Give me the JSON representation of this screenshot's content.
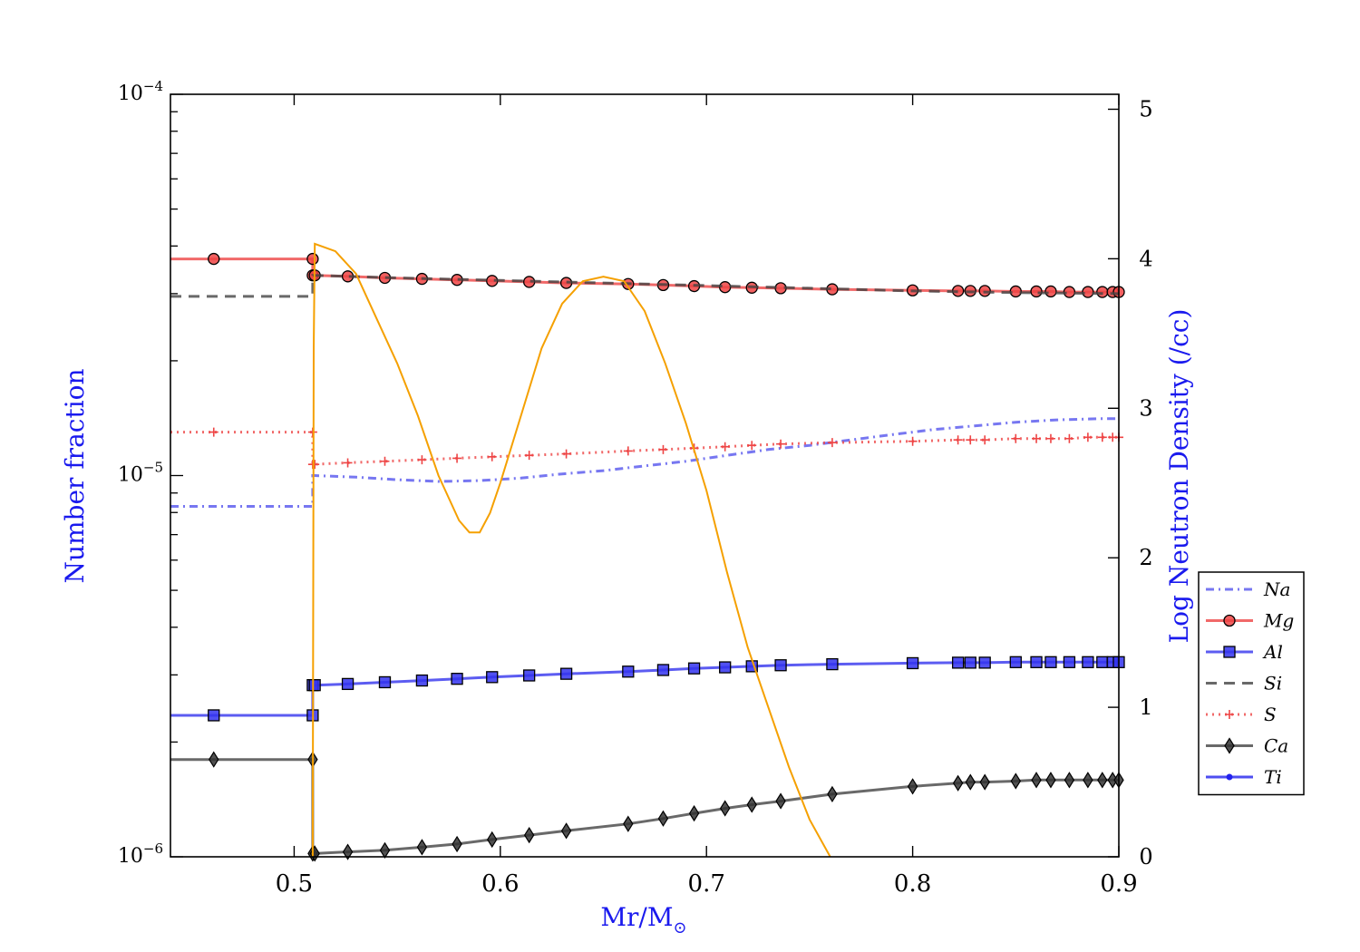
{
  "chart_data": {
    "type": "line",
    "xlabel_main": "Mr/M",
    "xlabel_sub": "⊙",
    "ylabel_left": "Number fraction",
    "ylabel_right": "Log Neutron Density (/cc)",
    "xlim": [
      0.44,
      0.9
    ],
    "ylim_left": [
      1e-06,
      0.0001
    ],
    "ylim_right": [
      0,
      5.1
    ],
    "y_left_scale": "log",
    "x_ticks": [
      0.5,
      0.6,
      0.7,
      0.8,
      0.9
    ],
    "x_tick_labels": [
      "0.5",
      "0.6",
      "0.7",
      "0.8",
      "0.9"
    ],
    "y_left_major_ticks": [
      {
        "value": 1e-06,
        "base": "10",
        "exp": "−6"
      },
      {
        "value": 1e-05,
        "base": "10",
        "exp": "−5"
      },
      {
        "value": 0.0001,
        "base": "10",
        "exp": "−4"
      }
    ],
    "y_right_ticks": [
      0,
      1,
      2,
      3,
      4,
      5
    ],
    "y_right_tick_labels": [
      "0",
      "1",
      "2",
      "3",
      "4",
      "5"
    ],
    "legend_position": "right",
    "series": [
      {
        "name": "Na",
        "color": "#5555ee",
        "style": "dashdot",
        "marker": "none",
        "x": [
          0.44,
          0.509,
          0.509,
          0.51,
          0.53,
          0.55,
          0.57,
          0.59,
          0.61,
          0.63,
          0.65,
          0.67,
          0.69,
          0.71,
          0.73,
          0.75,
          0.77,
          0.79,
          0.81,
          0.83,
          0.85,
          0.87,
          0.89,
          0.9
        ],
        "y": [
          8.3e-06,
          8.3e-06,
          1e-05,
          1e-05,
          9.9e-06,
          9.75e-06,
          9.65e-06,
          9.7e-06,
          9.85e-06,
          1.01e-05,
          1.03e-05,
          1.06e-05,
          1.09e-05,
          1.13e-05,
          1.17e-05,
          1.2e-05,
          1.24e-05,
          1.28e-05,
          1.32e-05,
          1.35e-05,
          1.38e-05,
          1.4e-05,
          1.41e-05,
          1.41e-05
        ]
      },
      {
        "name": "Mg",
        "color": "#ee4444",
        "style": "solid",
        "marker": "circle",
        "x": [
          0.44,
          0.509,
          0.509,
          0.51,
          0.526,
          0.544,
          0.562,
          0.579,
          0.596,
          0.614,
          0.632,
          0.662,
          0.679,
          0.694,
          0.709,
          0.722,
          0.736,
          0.761,
          0.8,
          0.822,
          0.828,
          0.835,
          0.85,
          0.86,
          0.867,
          0.876,
          0.885,
          0.892,
          0.897,
          0.9
        ],
        "y": [
          3.7e-05,
          3.7e-05,
          3.35e-05,
          3.35e-05,
          3.33e-05,
          3.3e-05,
          3.28e-05,
          3.26e-05,
          3.24e-05,
          3.22e-05,
          3.2e-05,
          3.18e-05,
          3.16e-05,
          3.14e-05,
          3.12e-05,
          3.11e-05,
          3.1e-05,
          3.08e-05,
          3.06e-05,
          3.05e-05,
          3.05e-05,
          3.05e-05,
          3.04e-05,
          3.04e-05,
          3.04e-05,
          3.03e-05,
          3.03e-05,
          3.03e-05,
          3.03e-05,
          3.03e-05
        ],
        "markers_x": [
          0.461,
          0.509,
          0.509,
          0.51,
          0.526,
          0.544,
          0.562,
          0.579,
          0.596,
          0.614,
          0.632,
          0.662,
          0.679,
          0.694,
          0.709,
          0.722,
          0.736,
          0.761,
          0.8,
          0.822,
          0.828,
          0.835,
          0.85,
          0.86,
          0.867,
          0.876,
          0.885,
          0.892,
          0.897,
          0.9
        ]
      },
      {
        "name": "Al",
        "color": "#3333ee",
        "style": "solid",
        "marker": "square",
        "x": [
          0.44,
          0.509,
          0.509,
          0.51,
          0.526,
          0.544,
          0.562,
          0.579,
          0.596,
          0.614,
          0.632,
          0.662,
          0.679,
          0.694,
          0.709,
          0.722,
          0.736,
          0.761,
          0.8,
          0.822,
          0.828,
          0.835,
          0.85,
          0.86,
          0.867,
          0.876,
          0.885,
          0.892,
          0.897,
          0.9
        ],
        "y": [
          2.35e-06,
          2.35e-06,
          2.82e-06,
          2.82e-06,
          2.84e-06,
          2.87e-06,
          2.9e-06,
          2.93e-06,
          2.96e-06,
          2.99e-06,
          3.02e-06,
          3.06e-06,
          3.09e-06,
          3.12e-06,
          3.14e-06,
          3.16e-06,
          3.18e-06,
          3.2e-06,
          3.22e-06,
          3.23e-06,
          3.23e-06,
          3.23e-06,
          3.24e-06,
          3.24e-06,
          3.24e-06,
          3.24e-06,
          3.24e-06,
          3.24e-06,
          3.24e-06,
          3.24e-06
        ],
        "markers_x": [
          0.461,
          0.509,
          0.509,
          0.51,
          0.526,
          0.544,
          0.562,
          0.579,
          0.596,
          0.614,
          0.632,
          0.662,
          0.679,
          0.694,
          0.709,
          0.722,
          0.736,
          0.761,
          0.8,
          0.822,
          0.828,
          0.835,
          0.85,
          0.86,
          0.867,
          0.876,
          0.885,
          0.892,
          0.897,
          0.9
        ]
      },
      {
        "name": "Si",
        "color": "#444444",
        "style": "dashed",
        "marker": "none",
        "x": [
          0.44,
          0.509,
          0.509,
          0.51,
          0.55,
          0.6,
          0.65,
          0.7,
          0.75,
          0.8,
          0.85,
          0.9
        ],
        "y": [
          2.95e-05,
          2.95e-05,
          3.35e-05,
          3.35e-05,
          3.3e-05,
          3.25e-05,
          3.2e-05,
          3.15e-05,
          3.1e-05,
          3.05e-05,
          3.02e-05,
          3e-05
        ]
      },
      {
        "name": "S",
        "color": "#ee4444",
        "style": "dotted",
        "marker": "plus",
        "x": [
          0.44,
          0.509,
          0.509,
          0.51,
          0.526,
          0.544,
          0.562,
          0.579,
          0.596,
          0.614,
          0.632,
          0.662,
          0.679,
          0.694,
          0.709,
          0.722,
          0.736,
          0.761,
          0.8,
          0.822,
          0.828,
          0.835,
          0.85,
          0.86,
          0.867,
          0.876,
          0.885,
          0.892,
          0.897,
          0.9
        ],
        "y": [
          1.3e-05,
          1.3e-05,
          1.07e-05,
          1.07e-05,
          1.08e-05,
          1.09e-05,
          1.1e-05,
          1.11e-05,
          1.12e-05,
          1.13e-05,
          1.14e-05,
          1.16e-05,
          1.17e-05,
          1.18e-05,
          1.19e-05,
          1.2e-05,
          1.21e-05,
          1.22e-05,
          1.23e-05,
          1.24e-05,
          1.24e-05,
          1.24e-05,
          1.25e-05,
          1.25e-05,
          1.25e-05,
          1.25e-05,
          1.26e-05,
          1.26e-05,
          1.26e-05,
          1.26e-05
        ],
        "markers_x": [
          0.461,
          0.509,
          0.509,
          0.51,
          0.526,
          0.544,
          0.562,
          0.579,
          0.596,
          0.614,
          0.632,
          0.662,
          0.679,
          0.694,
          0.709,
          0.722,
          0.736,
          0.761,
          0.8,
          0.822,
          0.828,
          0.835,
          0.85,
          0.86,
          0.867,
          0.876,
          0.885,
          0.892,
          0.897,
          0.9
        ]
      },
      {
        "name": "Ca",
        "color": "#444444",
        "style": "solid",
        "marker": "diamond",
        "x": [
          0.44,
          0.509,
          0.509,
          0.51,
          0.526,
          0.544,
          0.562,
          0.579,
          0.596,
          0.614,
          0.632,
          0.662,
          0.679,
          0.694,
          0.709,
          0.722,
          0.736,
          0.761,
          0.8,
          0.822,
          0.828,
          0.835,
          0.85,
          0.86,
          0.867,
          0.876,
          0.885,
          0.892,
          0.897,
          0.9
        ],
        "y": [
          1.8e-06,
          1.8e-06,
          1.02e-06,
          1.02e-06,
          1.03e-06,
          1.04e-06,
          1.06e-06,
          1.08e-06,
          1.11e-06,
          1.14e-06,
          1.17e-06,
          1.22e-06,
          1.26e-06,
          1.3e-06,
          1.34e-06,
          1.37e-06,
          1.4e-06,
          1.46e-06,
          1.53e-06,
          1.56e-06,
          1.57e-06,
          1.57e-06,
          1.58e-06,
          1.59e-06,
          1.59e-06,
          1.59e-06,
          1.59e-06,
          1.59e-06,
          1.59e-06,
          1.59e-06
        ],
        "markers_x": [
          0.461,
          0.509,
          0.509,
          0.51,
          0.526,
          0.544,
          0.562,
          0.579,
          0.596,
          0.614,
          0.632,
          0.662,
          0.679,
          0.694,
          0.709,
          0.722,
          0.736,
          0.761,
          0.8,
          0.822,
          0.828,
          0.835,
          0.85,
          0.86,
          0.867,
          0.876,
          0.885,
          0.892,
          0.897,
          0.9
        ]
      },
      {
        "name": "Ti",
        "color": "#2222ee",
        "style": "solid",
        "marker": "point",
        "x": [],
        "y": []
      },
      {
        "name": "Log Neutron Density",
        "color": "#f5a000",
        "style": "solid",
        "marker": "none",
        "axis": "right",
        "legend": false,
        "x": [
          0.509,
          0.5095,
          0.51,
          0.52,
          0.53,
          0.54,
          0.55,
          0.56,
          0.57,
          0.58,
          0.585,
          0.59,
          0.595,
          0.6,
          0.61,
          0.62,
          0.63,
          0.64,
          0.65,
          0.66,
          0.67,
          0.68,
          0.69,
          0.7,
          0.71,
          0.72,
          0.73,
          0.74,
          0.75,
          0.76
        ],
        "y": [
          0.0,
          3.4,
          4.1,
          4.05,
          3.9,
          3.6,
          3.3,
          2.95,
          2.55,
          2.25,
          2.17,
          2.17,
          2.3,
          2.5,
          2.95,
          3.4,
          3.7,
          3.85,
          3.88,
          3.85,
          3.65,
          3.3,
          2.9,
          2.45,
          1.9,
          1.4,
          1.0,
          0.6,
          0.25,
          0.0
        ]
      }
    ]
  }
}
